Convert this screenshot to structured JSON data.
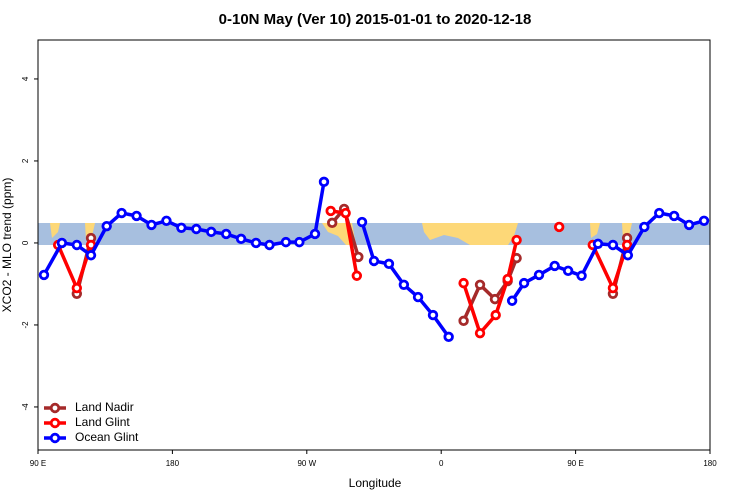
{
  "chart_data": {
    "type": "line",
    "title": "0-10N May (Ver 10)   2015-01-01 to 2020-12-18",
    "x_label": "Longitude",
    "y_label": "XCO2 - MLO trend (ppm)",
    "xlim": [
      90,
      540
    ],
    "xticks": [
      {
        "value": 90,
        "label": "90 E"
      },
      180,
      {
        "value": 270,
        "label": "90 W"
      },
      {
        "value": 360,
        "label": "0"
      },
      {
        "value": 450,
        "label": "90 E"
      },
      {
        "value": 540,
        "label": "180"
      }
    ],
    "ylim": [
      -5.05,
      4.95
    ],
    "yticks": [
      -4,
      -2,
      0,
      2,
      4
    ],
    "legend": "bottom-left",
    "series": [
      {
        "name": "Land Nadir",
        "color": "#a52a2a",
        "x": [
          116,
          125.5,
          null,
          287,
          295,
          304.5,
          null,
          375,
          386,
          396,
          404.5,
          410.5,
          null,
          475,
          484.5
        ],
        "values": [
          -1.24,
          0.12,
          null,
          0.49,
          0.83,
          -0.34,
          null,
          -1.9,
          -1.02,
          -1.37,
          -0.93,
          -0.37,
          null,
          -1.24,
          0.12
        ]
      },
      {
        "name": "Land Glint",
        "color": "#ff0000",
        "x": [
          103.5,
          116,
          125.5,
          null,
          286,
          296,
          303.5,
          null,
          375,
          386,
          396.5,
          404.5,
          410.5,
          null,
          439,
          null,
          461.5,
          475,
          484.5
        ],
        "values": [
          -0.05,
          -1.1,
          -0.05,
          null,
          0.78,
          0.73,
          -0.8,
          null,
          -0.98,
          -2.2,
          -1.76,
          -0.88,
          0.07,
          null,
          0.39,
          null,
          -0.05,
          -1.1,
          -0.05
        ]
      },
      {
        "name": "Ocean Glint",
        "color": "#0000ff",
        "x": [
          94,
          106,
          116,
          125.5,
          136,
          146,
          156,
          166,
          176,
          186,
          196,
          206,
          216,
          226,
          236,
          245,
          256,
          265,
          275.5,
          281.5,
          null,
          307,
          315,
          325,
          335,
          344.5,
          354.5,
          365,
          null,
          407.5,
          415.5,
          425.5,
          436,
          445,
          454,
          465,
          475,
          485,
          496,
          506,
          516,
          526,
          536
        ],
        "values": [
          -0.78,
          0,
          -0.05,
          -0.3,
          0.41,
          0.73,
          0.66,
          0.44,
          0.54,
          0.37,
          0.34,
          0.27,
          0.22,
          0.1,
          0,
          -0.05,
          0.02,
          0.02,
          0.22,
          1.49,
          null,
          0.51,
          -0.44,
          -0.51,
          -1.02,
          -1.32,
          -1.76,
          -2.29,
          null,
          -1.41,
          -0.98,
          -0.78,
          -0.56,
          -0.68,
          -0.8,
          -0.02,
          -0.05,
          -0.3,
          0.39,
          0.73,
          0.66,
          0.44,
          0.54
        ]
      }
    ]
  }
}
